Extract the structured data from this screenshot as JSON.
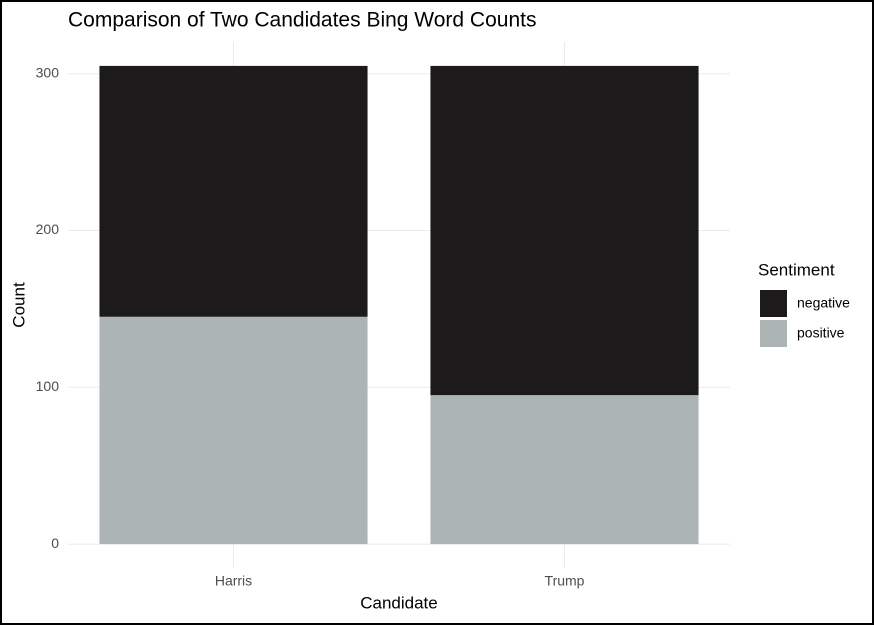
{
  "chart_data": {
    "type": "stacked_bar",
    "title": "Comparison of Two Candidates Bing Word Counts",
    "x_label": "Candidate",
    "y_label": "Count",
    "legend_title": "Sentiment",
    "categories": [
      "Harris",
      "Trump"
    ],
    "series": [
      {
        "name": "negative",
        "color": "#1c1a1b",
        "values": [
          160,
          210
        ]
      },
      {
        "name": "positive",
        "color": "#adb5b4",
        "values": [
          145,
          95
        ]
      }
    ],
    "ylim": [
      -15.25,
      320.25
    ],
    "yticks": [
      0,
      100,
      200,
      300
    ],
    "grid": true,
    "legend": "right"
  }
}
